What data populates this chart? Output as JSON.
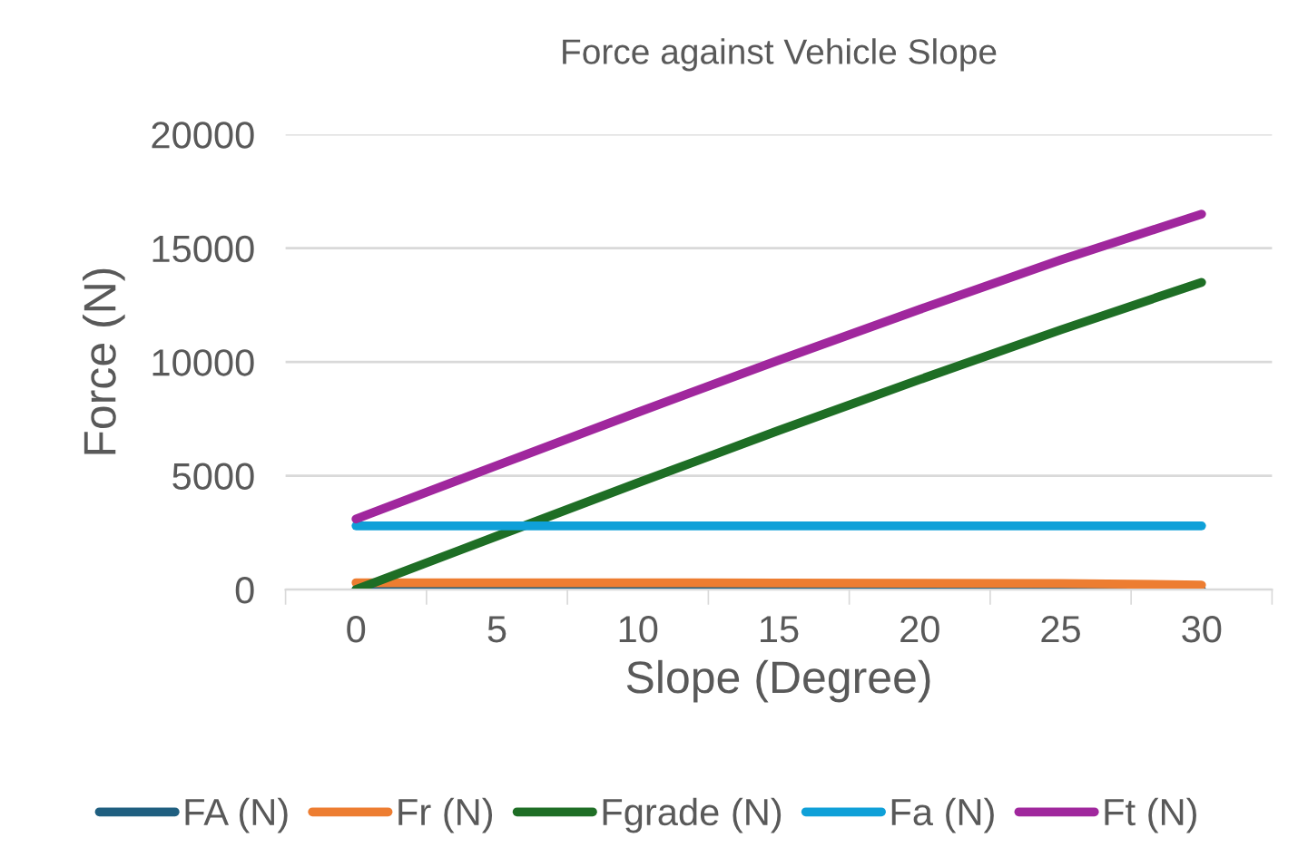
{
  "chart_data": {
    "type": "line",
    "title": "Force against Vehicle Slope",
    "xlabel": "Slope (Degree)",
    "ylabel": "Force (N)",
    "categories": [
      "0",
      "5",
      "10",
      "15",
      "20",
      "25",
      "30"
    ],
    "series": [
      {
        "name": "FA (N)",
        "color": "#1f5f80",
        "values": [
          0,
          0,
          0,
          0,
          0,
          0,
          0
        ]
      },
      {
        "name": "Fr (N)",
        "color": "#ed7d31",
        "values": [
          300,
          300,
          300,
          290,
          280,
          270,
          200
        ]
      },
      {
        "name": "Fgrade (N)",
        "color": "#1e6e25",
        "values": [
          0,
          2350,
          4690,
          6990,
          9230,
          11410,
          13500
        ]
      },
      {
        "name": "Fa (N)",
        "color": "#0fa0d8",
        "values": [
          2800,
          2800,
          2800,
          2800,
          2800,
          2800,
          2800
        ]
      },
      {
        "name": "Ft (N)",
        "color": "#a0279d",
        "values": [
          3100,
          5450,
          7790,
          10080,
          12310,
          14480,
          16500
        ]
      }
    ],
    "ylim": [
      0,
      20000
    ],
    "yticks": [
      0,
      5000,
      10000,
      15000,
      20000
    ],
    "grid": "y",
    "legend": "bottom",
    "marker": "none",
    "line_style": "solid"
  }
}
